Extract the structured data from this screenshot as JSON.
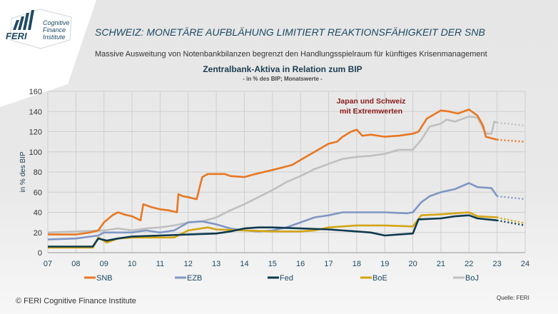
{
  "logo": {
    "brand": "FERI",
    "text_lines": [
      "Cognitive",
      "Finance",
      "Institute"
    ]
  },
  "header": {
    "title": "SCHWEIZ: MONETÄRE AUFBLÄHUNG LIMITIERT REAKTIONSFÄHIGKEIT DER SNB",
    "subtitle": "Massive Ausweitung von Notenbankbilanzen begrenzt  den Handlungsspielraum für künftiges Krisenmanagement"
  },
  "footer": {
    "copyright": "© FERI Cognitive Finance Institute",
    "source": "Quelle: FERI"
  },
  "chart_data": {
    "type": "line",
    "title": "Zentralbank-Aktiva  in Relation zum BIP",
    "subtitle": "- in % des BIP; Monatswerte -",
    "ylabel": "in % des BIP",
    "xlabel": "",
    "xlim": [
      2007,
      2024
    ],
    "ylim": [
      0,
      160
    ],
    "yticks": [
      0,
      20,
      40,
      60,
      80,
      100,
      120,
      140,
      160
    ],
    "xtick_labels": [
      "07",
      "08",
      "09",
      "10",
      "11",
      "12",
      "13",
      "14",
      "15",
      "16",
      "17",
      "18",
      "19",
      "20",
      "21",
      "22",
      "23",
      "24"
    ],
    "grid": true,
    "legend_placement": "bottom",
    "annotation": {
      "lines": [
        "Japan und Schweiz",
        "mit Extremwerten"
      ],
      "color": "#8b1a1a"
    },
    "series": [
      {
        "name": "SNB",
        "color": "#e87722",
        "points": [
          [
            2007,
            18
          ],
          [
            2008,
            18
          ],
          [
            2008.5,
            20
          ],
          [
            2008.8,
            22
          ],
          [
            2009,
            30
          ],
          [
            2009.3,
            37
          ],
          [
            2009.5,
            40
          ],
          [
            2009.7,
            38
          ],
          [
            2010,
            36
          ],
          [
            2010.3,
            32
          ],
          [
            2010.4,
            48
          ],
          [
            2010.7,
            45
          ],
          [
            2011,
            43
          ],
          [
            2011.3,
            42
          ],
          [
            2011.6,
            40
          ],
          [
            2011.65,
            58
          ],
          [
            2011.8,
            56
          ],
          [
            2012,
            55
          ],
          [
            2012.3,
            53
          ],
          [
            2012.5,
            75
          ],
          [
            2012.7,
            78
          ],
          [
            2013,
            78
          ],
          [
            2013.3,
            78
          ],
          [
            2013.5,
            76
          ],
          [
            2014,
            75
          ],
          [
            2014.4,
            78
          ],
          [
            2014.7,
            80
          ],
          [
            2015,
            82
          ],
          [
            2015.3,
            84
          ],
          [
            2015.7,
            87
          ],
          [
            2016,
            92
          ],
          [
            2016.5,
            100
          ],
          [
            2017,
            108
          ],
          [
            2017.3,
            110
          ],
          [
            2017.5,
            115
          ],
          [
            2017.8,
            120
          ],
          [
            2018,
            122
          ],
          [
            2018.2,
            116
          ],
          [
            2018.5,
            117
          ],
          [
            2019,
            115
          ],
          [
            2019.5,
            116
          ],
          [
            2020,
            118
          ],
          [
            2020.2,
            120
          ],
          [
            2020.5,
            133
          ],
          [
            2021,
            141
          ],
          [
            2021.3,
            140
          ],
          [
            2021.6,
            138
          ],
          [
            2022,
            142
          ],
          [
            2022.3,
            136
          ],
          [
            2022.5,
            126
          ],
          [
            2022.6,
            115
          ],
          [
            2023,
            112
          ]
        ],
        "projection": [
          [
            2023,
            112
          ],
          [
            2024,
            110
          ]
        ]
      },
      {
        "name": "EZB",
        "color": "#7f97c4",
        "points": [
          [
            2007,
            13
          ],
          [
            2008,
            14
          ],
          [
            2008.8,
            17
          ],
          [
            2009,
            20
          ],
          [
            2010,
            20
          ],
          [
            2010.5,
            22
          ],
          [
            2011,
            20
          ],
          [
            2011.5,
            22
          ],
          [
            2012,
            30
          ],
          [
            2012.5,
            31
          ],
          [
            2013,
            28
          ],
          [
            2013.5,
            24
          ],
          [
            2014,
            22
          ],
          [
            2014.5,
            21
          ],
          [
            2015,
            22
          ],
          [
            2015.5,
            25
          ],
          [
            2016,
            30
          ],
          [
            2016.5,
            35
          ],
          [
            2017,
            37
          ],
          [
            2017.5,
            40
          ],
          [
            2018,
            40
          ],
          [
            2019,
            40
          ],
          [
            2019.8,
            39
          ],
          [
            2020,
            40
          ],
          [
            2020.3,
            50
          ],
          [
            2020.6,
            56
          ],
          [
            2021,
            60
          ],
          [
            2021.5,
            63
          ],
          [
            2022,
            69
          ],
          [
            2022.3,
            65
          ],
          [
            2022.8,
            64
          ],
          [
            2023,
            56
          ]
        ],
        "projection": [
          [
            2023,
            56
          ],
          [
            2024,
            53
          ]
        ]
      },
      {
        "name": "Fed",
        "color": "#0d3a4f",
        "points": [
          [
            2007,
            6
          ],
          [
            2008.6,
            6
          ],
          [
            2008.8,
            14
          ],
          [
            2009.1,
            12
          ],
          [
            2009.5,
            14
          ],
          [
            2010,
            16
          ],
          [
            2011,
            17
          ],
          [
            2012,
            18
          ],
          [
            2013,
            19
          ],
          [
            2013.5,
            21
          ],
          [
            2014,
            24
          ],
          [
            2014.5,
            25
          ],
          [
            2015,
            25
          ],
          [
            2016,
            24
          ],
          [
            2017,
            23
          ],
          [
            2018,
            21
          ],
          [
            2018.5,
            20
          ],
          [
            2019,
            17
          ],
          [
            2019.5,
            18
          ],
          [
            2020,
            19
          ],
          [
            2020.2,
            33
          ],
          [
            2021,
            34
          ],
          [
            2021.5,
            36
          ],
          [
            2022,
            37
          ],
          [
            2022.3,
            34
          ],
          [
            2023,
            32
          ]
        ],
        "projection": [
          [
            2023,
            32
          ],
          [
            2024,
            27
          ]
        ]
      },
      {
        "name": "BoE",
        "color": "#d4a514",
        "points": [
          [
            2007,
            5
          ],
          [
            2008.6,
            5
          ],
          [
            2008.8,
            15
          ],
          [
            2009.1,
            10
          ],
          [
            2009.5,
            14
          ],
          [
            2010,
            15
          ],
          [
            2011,
            15
          ],
          [
            2011.5,
            15
          ],
          [
            2012,
            22
          ],
          [
            2012.7,
            25
          ],
          [
            2013,
            23
          ],
          [
            2014,
            22
          ],
          [
            2015,
            21
          ],
          [
            2016,
            21
          ],
          [
            2016.5,
            22
          ],
          [
            2017,
            25
          ],
          [
            2018,
            27
          ],
          [
            2019,
            27
          ],
          [
            2020,
            26
          ],
          [
            2020.3,
            37
          ],
          [
            2021,
            38
          ],
          [
            2022,
            40
          ],
          [
            2022.3,
            36
          ],
          [
            2023,
            35
          ]
        ],
        "projection": [
          [
            2023,
            35
          ],
          [
            2024,
            29
          ]
        ]
      },
      {
        "name": "BoJ",
        "color": "#bfbfbf",
        "points": [
          [
            2007,
            20
          ],
          [
            2008,
            21
          ],
          [
            2009,
            22
          ],
          [
            2009.5,
            24
          ],
          [
            2010,
            22
          ],
          [
            2010.5,
            24
          ],
          [
            2011,
            25
          ],
          [
            2011.5,
            27
          ],
          [
            2012,
            30
          ],
          [
            2012.5,
            31
          ],
          [
            2013,
            35
          ],
          [
            2013.5,
            42
          ],
          [
            2014,
            48
          ],
          [
            2014.5,
            55
          ],
          [
            2015,
            62
          ],
          [
            2015.5,
            70
          ],
          [
            2016,
            76
          ],
          [
            2016.5,
            83
          ],
          [
            2017,
            88
          ],
          [
            2017.5,
            93
          ],
          [
            2018,
            95
          ],
          [
            2018.5,
            96
          ],
          [
            2019,
            98
          ],
          [
            2019.5,
            102
          ],
          [
            2020,
            102
          ],
          [
            2020.3,
            112
          ],
          [
            2020.6,
            125
          ],
          [
            2021,
            128
          ],
          [
            2021.2,
            132
          ],
          [
            2021.5,
            130
          ],
          [
            2022,
            135
          ],
          [
            2022.3,
            134
          ],
          [
            2022.6,
            118
          ],
          [
            2022.8,
            118
          ],
          [
            2022.9,
            130
          ],
          [
            2023,
            129
          ]
        ],
        "projection": [
          [
            2023,
            129
          ],
          [
            2024,
            126
          ]
        ]
      }
    ]
  }
}
